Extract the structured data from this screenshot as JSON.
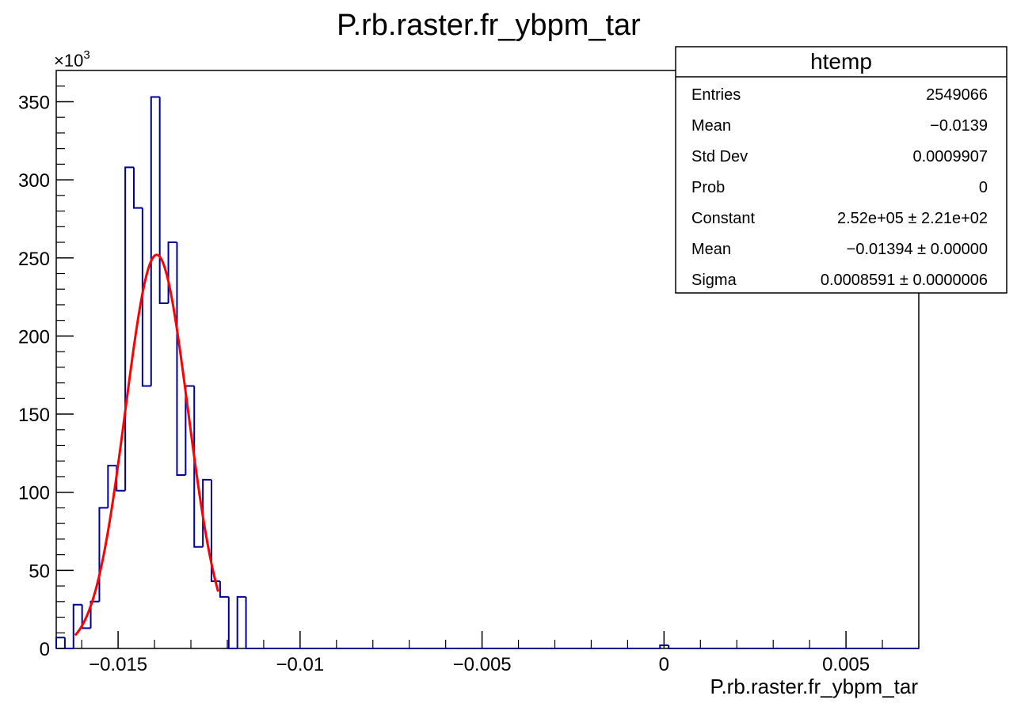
{
  "chart_data": {
    "type": "histogram",
    "title": "P.rb.raster.fr_ybpm_tar",
    "xlabel": "P.rb.raster.fr_ybpm_tar",
    "ylabel": "",
    "y_multiplier_label": "×10",
    "y_multiplier_exponent": "3",
    "xlim": [
      -0.0167,
      0.007
    ],
    "ylim": [
      0,
      370
    ],
    "x_ticks": [
      {
        "value": -0.015,
        "label": "−0.015"
      },
      {
        "value": -0.01,
        "label": "−0.01"
      },
      {
        "value": -0.005,
        "label": "−0.005"
      },
      {
        "value": 0,
        "label": "0"
      },
      {
        "value": 0.005,
        "label": "0.005"
      }
    ],
    "y_ticks": [
      {
        "value": 0,
        "label": "0"
      },
      {
        "value": 50,
        "label": "50"
      },
      {
        "value": 100,
        "label": "100"
      },
      {
        "value": 150,
        "label": "150"
      },
      {
        "value": 200,
        "label": "200"
      },
      {
        "value": 250,
        "label": "250"
      },
      {
        "value": 300,
        "label": "300"
      },
      {
        "value": 350,
        "label": "350"
      }
    ],
    "histogram": {
      "color": "#000099",
      "x_start": -0.0167,
      "bin_width": 0.000237,
      "values": [
        7,
        0,
        28,
        13,
        30,
        90,
        117,
        101,
        308,
        282,
        168,
        353,
        221,
        260,
        111,
        168,
        65,
        108,
        43,
        33,
        0,
        33,
        0,
        0,
        0,
        0,
        0,
        0,
        0,
        0,
        0,
        0,
        0,
        0,
        0,
        0,
        0,
        0,
        0,
        0,
        0,
        0,
        0,
        0,
        0,
        0,
        0,
        0,
        0,
        0,
        0,
        0,
        0,
        0,
        0,
        0,
        0,
        0,
        0,
        0,
        0,
        0,
        0,
        0,
        0,
        0,
        0,
        0,
        0,
        0,
        2,
        0,
        0,
        0,
        0,
        0,
        0,
        0,
        0,
        0,
        0,
        0,
        0,
        0,
        0,
        0,
        0,
        0,
        0,
        0,
        0,
        0,
        0,
        0,
        0,
        0,
        0,
        0,
        0,
        0
      ]
    },
    "fit": {
      "type": "gaus",
      "color": "#ff0000",
      "constant": 252,
      "mean": -0.01394,
      "sigma": 0.0008591,
      "x_range": [
        -0.01618,
        -0.01225
      ]
    },
    "stats_box": {
      "title": "htemp",
      "rows": [
        {
          "label": "Entries",
          "value": "2549066"
        },
        {
          "label": "Mean",
          "value": "−0.0139"
        },
        {
          "label": "Std Dev",
          "value": "0.0009907"
        },
        {
          "label": "Prob",
          "value": "0"
        },
        {
          "label": "Constant",
          "value": "2.52e+05 ± 2.21e+02"
        },
        {
          "label": "Mean",
          "value": "−0.01394 ± 0.00000"
        },
        {
          "label": "Sigma",
          "value": "0.0008591 ± 0.0000006"
        }
      ]
    }
  }
}
